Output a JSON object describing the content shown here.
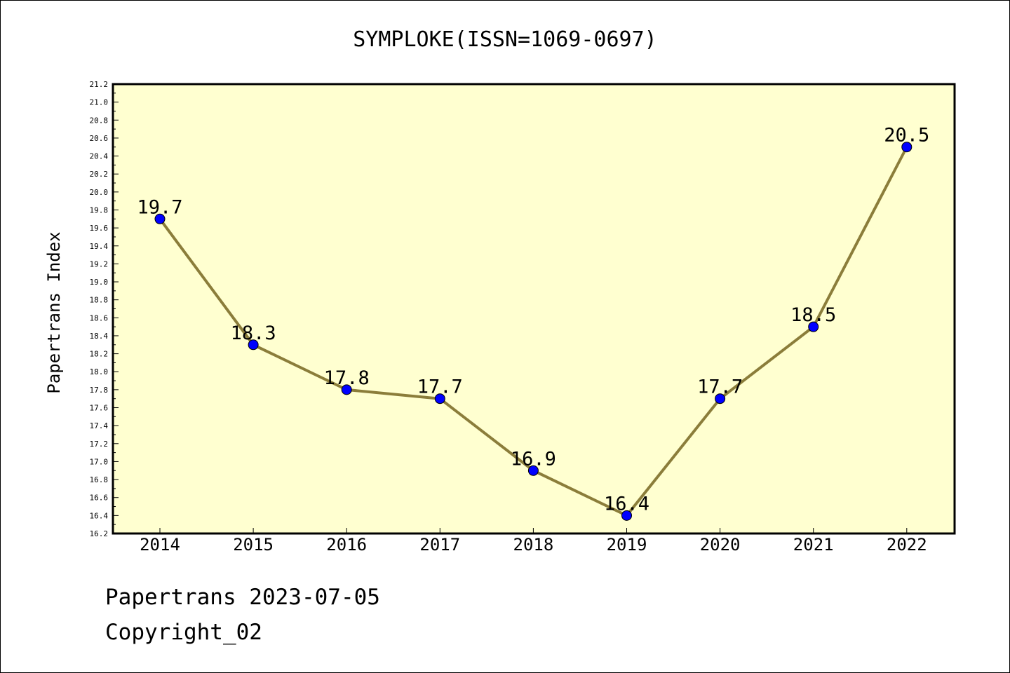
{
  "chart_data": {
    "type": "line",
    "title": "SYMPLOKE(ISSN=1069-0697)",
    "xlabel": "",
    "ylabel": "Papertrans Index",
    "categories": [
      "2014",
      "2015",
      "2016",
      "2017",
      "2018",
      "2019",
      "2020",
      "2021",
      "2022"
    ],
    "series": [
      {
        "values": [
          19.7,
          18.3,
          17.8,
          17.7,
          16.9,
          16.4,
          17.7,
          18.5,
          20.5
        ],
        "labels": [
          "19.7",
          "18.3",
          "17.8",
          "17.7",
          "16.9",
          "16.4",
          "17.7",
          "18.5",
          "20.5"
        ]
      }
    ],
    "ylim": [
      16.2,
      21.2
    ],
    "y_ticks": [
      "16.2",
      "16.4",
      "16.6",
      "16.8",
      "17.0",
      "17.2",
      "17.4",
      "17.6",
      "17.8",
      "18.0",
      "18.2",
      "18.4",
      "18.6",
      "18.8",
      "19.0",
      "19.2",
      "19.4",
      "19.6",
      "19.8",
      "20.0",
      "20.2",
      "20.4",
      "20.6",
      "20.8",
      "21.0",
      "21.2"
    ],
    "grid": false,
    "legend": "none",
    "colors": {
      "plot_background": "#ffffd0",
      "line": "#8b7d3a",
      "marker": "#0000ff",
      "axis": "#000000"
    }
  },
  "footer": {
    "line1": "Papertrans 2023-07-05",
    "line2": "Copyright_02"
  }
}
